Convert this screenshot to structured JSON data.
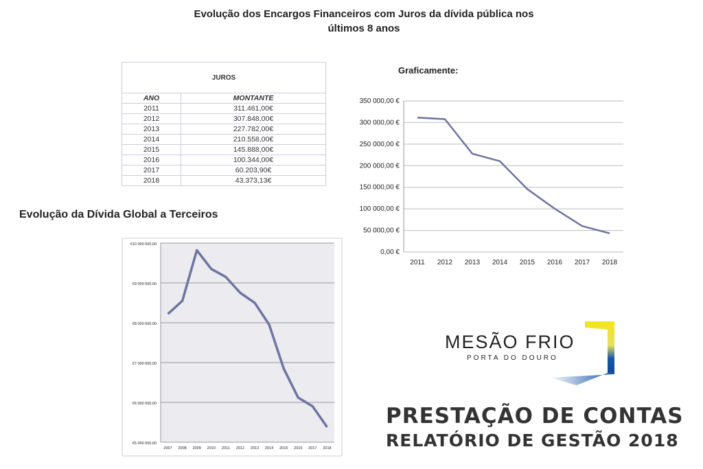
{
  "title_line1": "Evolução dos Encargos Financeiros com Juros da dívida pública nos",
  "title_line2": "últimos 8 anos",
  "table": {
    "caption": "JUROS",
    "headers": [
      "ANO",
      "MONTANTE"
    ],
    "rows": [
      [
        "2011",
        "311.461,00€"
      ],
      [
        "2012",
        "307.848,00€"
      ],
      [
        "2013",
        "227.782,00€"
      ],
      [
        "2014",
        "210.558,00€"
      ],
      [
        "2015",
        "145.888,00€"
      ],
      [
        "2016",
        "100.344,00€"
      ],
      [
        "2017",
        "60.203,90€"
      ],
      [
        "2018",
        "43.373,13€"
      ]
    ]
  },
  "graficamente": "Graficamente:",
  "divida_title": "Evolução da Dívida Global a Terceiros",
  "logo": {
    "name": "MESÃO FRIO",
    "tagline": "PORTA DO DOURO"
  },
  "footer": {
    "line1": "PRESTAÇÃO DE CONTAS",
    "line2": "RELATÓRIO DE GESTÃO 2018"
  },
  "chart_data": [
    {
      "type": "line",
      "title": "Graficamente:",
      "x": [
        "2011",
        "2012",
        "2013",
        "2014",
        "2015",
        "2016",
        "2017",
        "2018"
      ],
      "values": [
        311461,
        307848,
        227782,
        210558,
        145888,
        100344,
        60203.9,
        43373.13
      ],
      "ylim": [
        0,
        350000
      ],
      "yticks": [
        "0,00 €",
        "50 000,00 €",
        "100 000,00 €",
        "150 000,00 €",
        "200 000,00 €",
        "250 000,00 €",
        "300 000,00 €",
        "350 000,00 €"
      ],
      "grid": true,
      "color": "#6f74a0"
    },
    {
      "type": "line",
      "title": "Evolução da Dívida Global a Terceiros",
      "x": [
        "2007",
        "2008",
        "2009",
        "2010",
        "2011",
        "2012",
        "2013",
        "2014",
        "2015",
        "2016",
        "2017",
        "2018"
      ],
      "values": [
        8220000,
        8550000,
        9820000,
        9350000,
        9150000,
        8750000,
        8500000,
        7950000,
        6850000,
        6120000,
        5900000,
        5380000
      ],
      "ylim": [
        5000000,
        10000000
      ],
      "yticks": [
        "€5 000 000,00",
        "€6 000 000,00",
        "€7 000 000,00",
        "€8 000 000,00",
        "€9 000 000,00",
        "€10 000 000,00"
      ],
      "grid": true,
      "color": "#6f74a0"
    }
  ]
}
